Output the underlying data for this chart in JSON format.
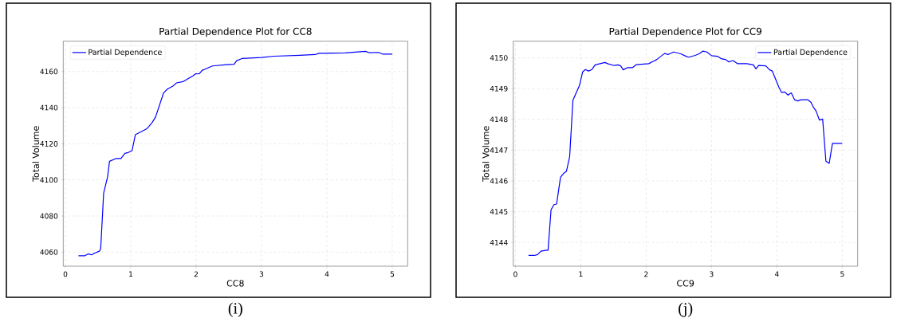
{
  "chart_data": [
    {
      "type": "line",
      "title": "Partial Dependence Plot for CC8",
      "xlabel": "CC8",
      "ylabel": "Total Volume",
      "series": [
        {
          "name": "Partial Dependence",
          "color": "#0000ff",
          "x": [
            0.2,
            0.3,
            0.35,
            0.4,
            0.45,
            0.52,
            0.54,
            0.585,
            0.646,
            0.675,
            0.77,
            0.85,
            0.91,
            0.95,
            1.02,
            1.07,
            1.24,
            1.28,
            1.33,
            1.38,
            1.5,
            1.56,
            1.64,
            1.7,
            1.8,
            1.87,
            1.95,
            1.99,
            2.05,
            2.09,
            2.25,
            2.46,
            2.58,
            2.62,
            2.7,
            3.0,
            3.19,
            3.59,
            3.82,
            3.88,
            4.28,
            4.59,
            4.65,
            4.79,
            4.85,
            5.0
          ],
          "values": [
            4058,
            4058,
            4059,
            4058.5,
            4059.5,
            4060.5,
            4062,
            4092.6,
            4101.8,
            4110.3,
            4111.8,
            4111.8,
            4114.7,
            4115,
            4116.2,
            4125,
            4128.2,
            4129.7,
            4131.9,
            4134.9,
            4148,
            4150.3,
            4151.8,
            4153.7,
            4154.4,
            4155.9,
            4157.6,
            4158.7,
            4158.8,
            4160.6,
            4163.1,
            4163.8,
            4164,
            4166,
            4167.2,
            4167.8,
            4168.5,
            4169,
            4169.4,
            4170.1,
            4170.3,
            4171.2,
            4170.4,
            4170.6,
            4169.7,
            4169.7
          ]
        }
      ],
      "xlim": [
        -0.033,
        5.236
      ],
      "ylim": [
        4052.2,
        4176.8
      ],
      "xticks": [
        0,
        1,
        2,
        3,
        4,
        5
      ],
      "yticks": [
        4060,
        4080,
        4100,
        4120,
        4140,
        4160
      ],
      "grid": true,
      "legend": "top left",
      "annotations": [
        "(i)"
      ]
    },
    {
      "type": "line",
      "title": "Partial Dependence Plot for CC9",
      "xlabel": "CC9",
      "ylabel": "Total Volume",
      "series": [
        {
          "name": "Partial Dependence",
          "color": "#0000ff",
          "x": [
            0.2,
            0.29,
            0.34,
            0.39,
            0.48,
            0.5,
            0.545,
            0.59,
            0.63,
            0.69,
            0.74,
            0.78,
            0.83,
            0.88,
            0.98,
            1.03,
            1.07,
            1.12,
            1.17,
            1.22,
            1.37,
            1.41,
            1.51,
            1.57,
            1.61,
            1.65,
            1.71,
            1.79,
            1.85,
            2.04,
            2.1,
            2.16,
            2.28,
            2.34,
            2.42,
            2.53,
            2.59,
            2.65,
            2.75,
            2.81,
            2.87,
            2.93,
            3.0,
            3.09,
            3.15,
            3.22,
            3.26,
            3.33,
            3.4,
            3.54,
            3.64,
            3.68,
            3.72,
            3.83,
            3.89,
            3.93,
            4.03,
            4.07,
            4.12,
            4.17,
            4.22,
            4.27,
            4.32,
            4.37,
            4.47,
            4.52,
            4.56,
            4.6,
            4.65,
            4.7,
            4.75,
            4.8,
            4.85,
            5.0
          ],
          "values": [
            4143.58,
            4143.58,
            4143.61,
            4143.72,
            4143.75,
            4143.75,
            4145.06,
            4145.23,
            4145.25,
            4146.12,
            4146.25,
            4146.31,
            4146.79,
            4148.62,
            4149.1,
            4149.55,
            4149.62,
            4149.57,
            4149.62,
            4149.77,
            4149.85,
            4149.81,
            4149.75,
            4149.77,
            4149.74,
            4149.61,
            4149.68,
            4149.68,
            4149.78,
            4149.81,
            4149.88,
            4149.94,
            4150.14,
            4150.11,
            4150.19,
            4150.13,
            4150.07,
            4150.02,
            4150.08,
            4150.13,
            4150.22,
            4150.19,
            4150.07,
            4150.05,
            4149.97,
            4149.94,
            4149.87,
            4149.91,
            4149.81,
            4149.81,
            4149.77,
            4149.64,
            4149.75,
            4149.74,
            4149.61,
            4149.57,
            4149.05,
            4148.88,
            4148.89,
            4148.79,
            4148.86,
            4148.64,
            4148.6,
            4148.64,
            4148.64,
            4148.56,
            4148.39,
            4148.27,
            4147.98,
            4148.01,
            4146.64,
            4146.57,
            4147.22,
            4147.22
          ]
        }
      ],
      "xlim": [
        -0.033,
        5.236
      ],
      "ylim": [
        4143.23,
        4150.54
      ],
      "xticks": [
        0,
        1,
        2,
        3,
        4,
        5
      ],
      "yticks": [
        4144,
        4145,
        4146,
        4147,
        4148,
        4149,
        4150
      ],
      "grid": true,
      "legend": "top right",
      "annotations": [
        "(j)"
      ]
    }
  ]
}
